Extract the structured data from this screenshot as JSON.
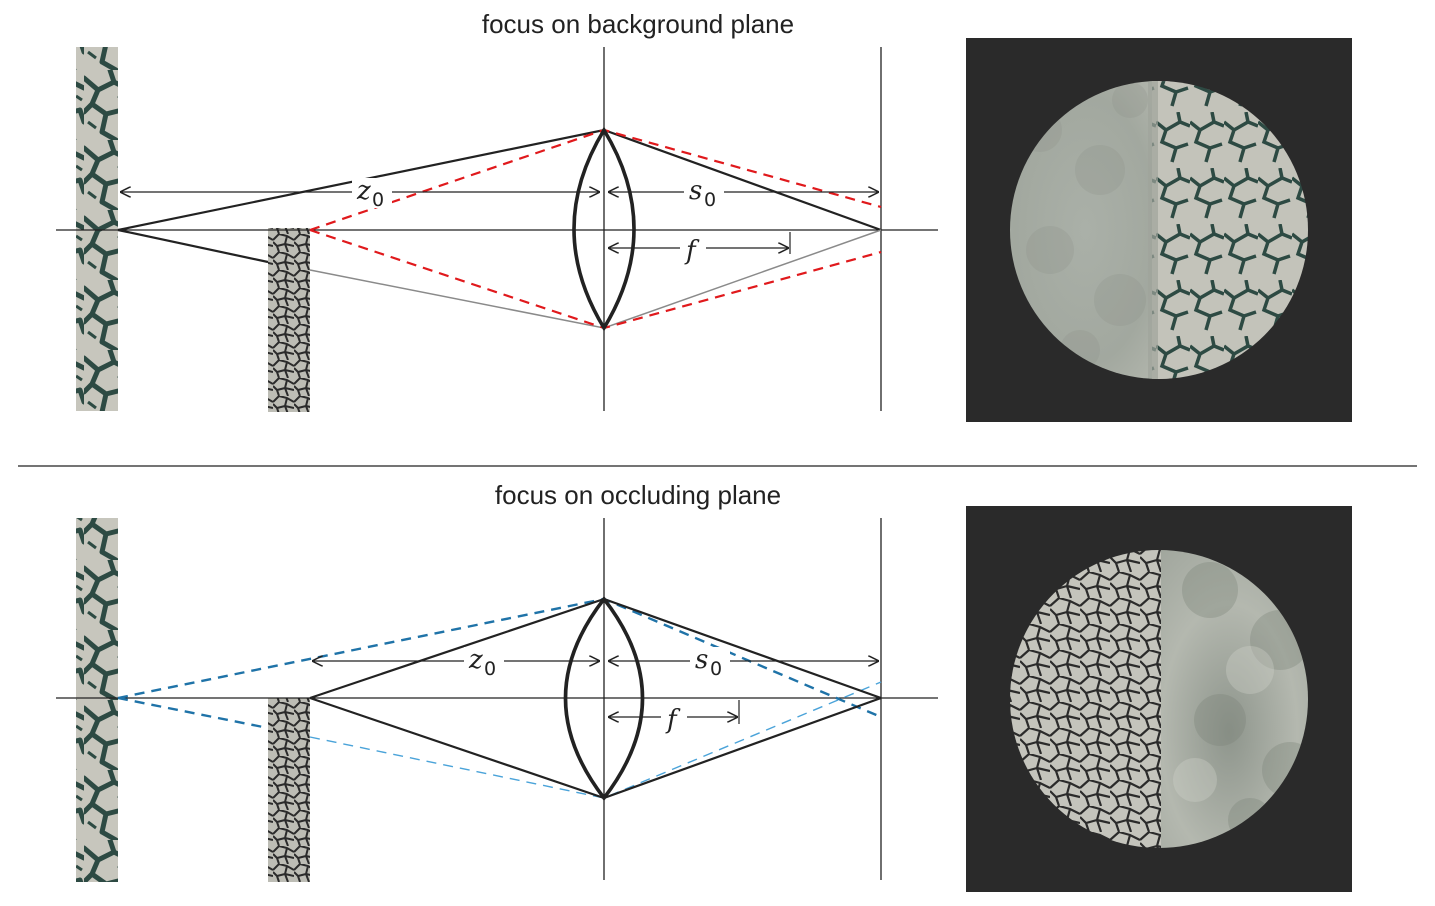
{
  "panels": [
    {
      "id": "background",
      "title": "focus on background plane",
      "labels": {
        "z": "z",
        "z_sub": "0",
        "s": "s",
        "s_sub": "0",
        "f": "f"
      },
      "ray_color": "#e0191c"
    },
    {
      "id": "occluding",
      "title": "focus on occluding plane",
      "labels": {
        "z": "z",
        "z_sub": "0",
        "s": "s",
        "s_sub": "0",
        "f": "f"
      },
      "ray_color": "#1f73a8",
      "ray_color_light": "#4aa3d9"
    }
  ],
  "colors": {
    "texture_light": "#c7c6bd",
    "texture_dark": "#2d4a43",
    "render_bg": "#2a2a2a",
    "line": "#222222"
  },
  "icons": {
    "background_plane": "crack-texture-strip",
    "occluding_plane": "cell-texture-strip",
    "lens": "biconvex-lens"
  }
}
